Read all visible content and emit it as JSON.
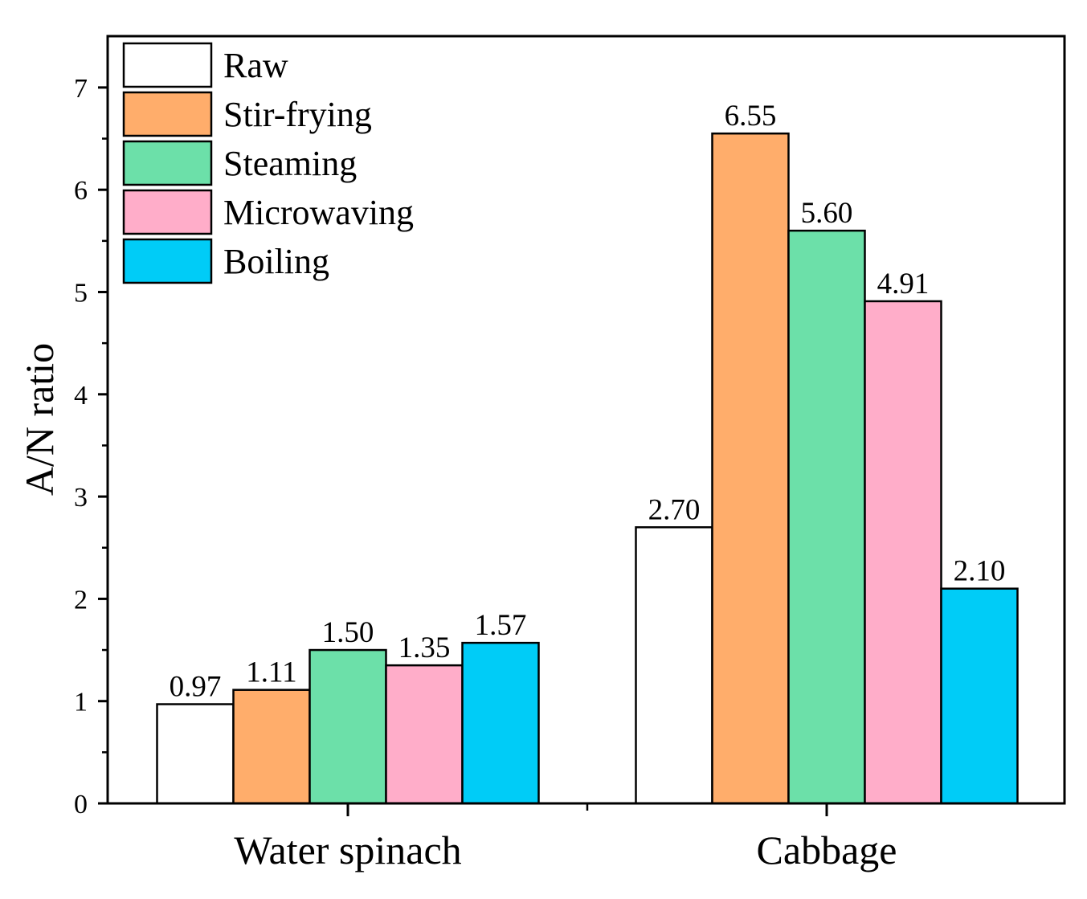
{
  "chart_data": {
    "type": "bar",
    "title": "",
    "xlabel": "",
    "ylabel": "A/N ratio",
    "ylim": [
      0,
      7.5
    ],
    "yticks": [
      0,
      1,
      2,
      3,
      4,
      5,
      6,
      7
    ],
    "yticks_labels": [
      "0",
      "1",
      "2",
      "3",
      "4",
      "5",
      "6",
      "7"
    ],
    "categories": [
      "Water spinach",
      "Cabbage"
    ],
    "grid": false,
    "legend_position": "top-left",
    "series": [
      {
        "name": "Raw",
        "color": "#ffffff",
        "values": [
          0.97,
          2.7
        ],
        "labels": [
          "0.97",
          "2.70"
        ]
      },
      {
        "name": "Stir-frying",
        "color": "#ffad6b",
        "values": [
          1.11,
          6.55
        ],
        "labels": [
          "1.11",
          "6.55"
        ]
      },
      {
        "name": "Steaming",
        "color": "#6ce0a9",
        "values": [
          1.5,
          5.6
        ],
        "labels": [
          "1.50",
          "5.60"
        ]
      },
      {
        "name": "Microwaving",
        "color": "#ffadc9",
        "values": [
          1.35,
          4.91
        ],
        "labels": [
          "1.35",
          "4.91"
        ]
      },
      {
        "name": "Boiling",
        "color": "#00ccf7",
        "values": [
          1.57,
          2.1
        ],
        "labels": [
          "1.57",
          "2.10"
        ]
      }
    ]
  }
}
